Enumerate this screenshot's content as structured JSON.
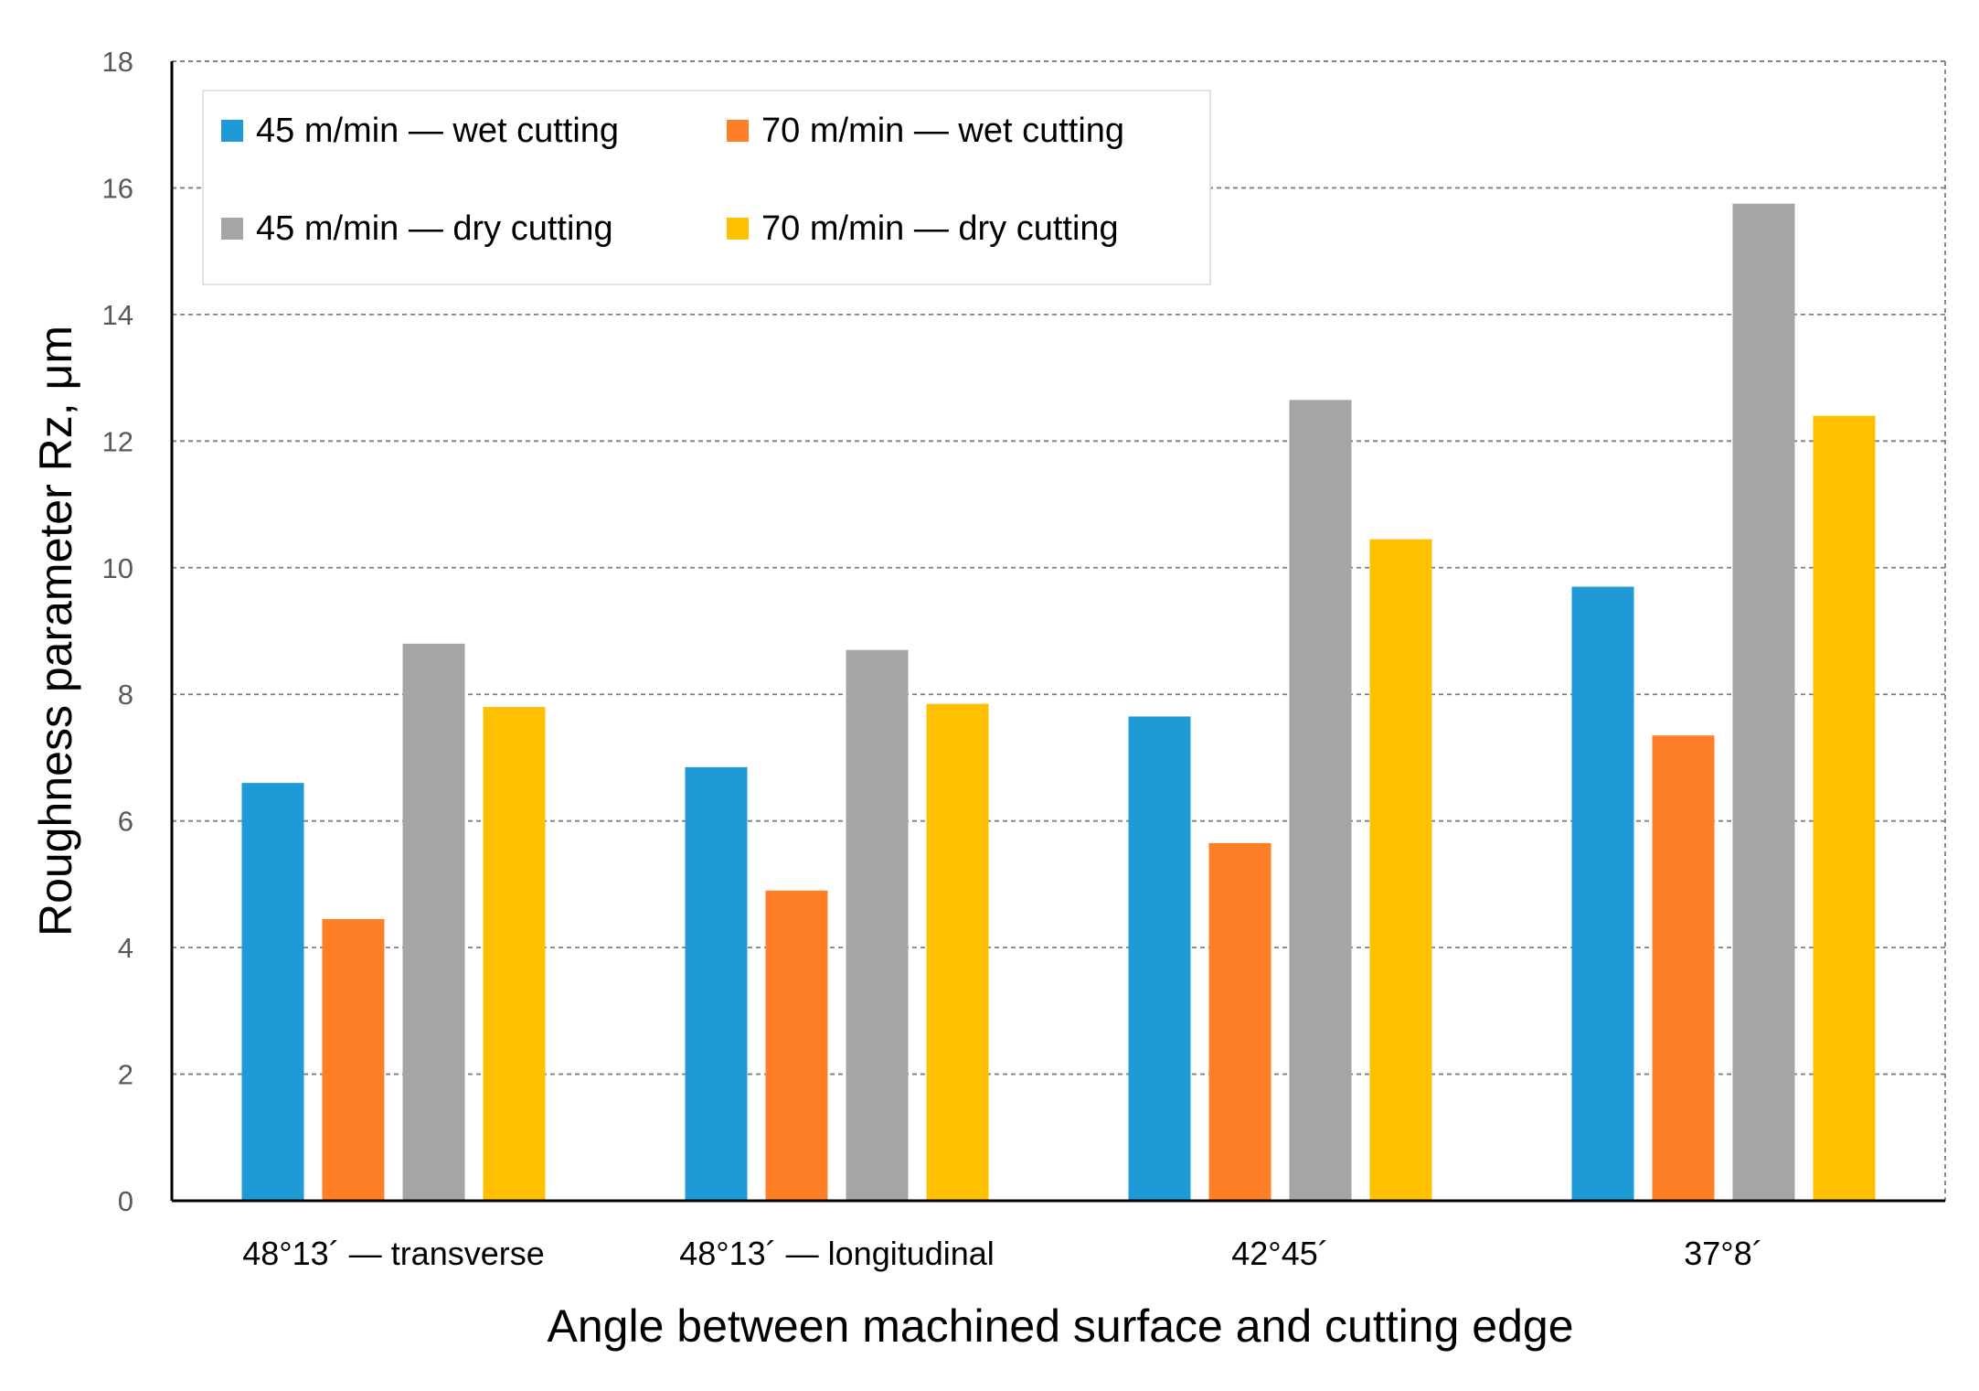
{
  "chart_data": {
    "type": "bar",
    "title": "",
    "xlabel": "Angle between machined surface and cutting edge",
    "ylabel": "Roughness parameter Rz, μm",
    "ylim": [
      0,
      18
    ],
    "yticks": [
      0,
      2,
      4,
      6,
      8,
      10,
      12,
      14,
      16,
      18
    ],
    "grid": true,
    "legend_position": "top-left",
    "categories": [
      "48°13´ — transverse",
      "48°13´ — longitudinal",
      "42°45´",
      "37°8´"
    ],
    "series": [
      {
        "name": "45 m/min — wet cutting",
        "color": "#1E9BD7",
        "values": [
          6.6,
          6.85,
          7.65,
          9.7
        ]
      },
      {
        "name": "70 m/min — wet cutting",
        "color": "#FF7F27",
        "values": [
          4.45,
          4.9,
          5.65,
          7.35
        ]
      },
      {
        "name": "45 m/min — dry cutting",
        "color": "#A5A5A5",
        "values": [
          8.8,
          8.7,
          12.65,
          15.75
        ]
      },
      {
        "name": "70 m/min — dry cutting",
        "color": "#FFC000",
        "values": [
          7.8,
          7.85,
          10.45,
          12.4
        ]
      }
    ]
  }
}
